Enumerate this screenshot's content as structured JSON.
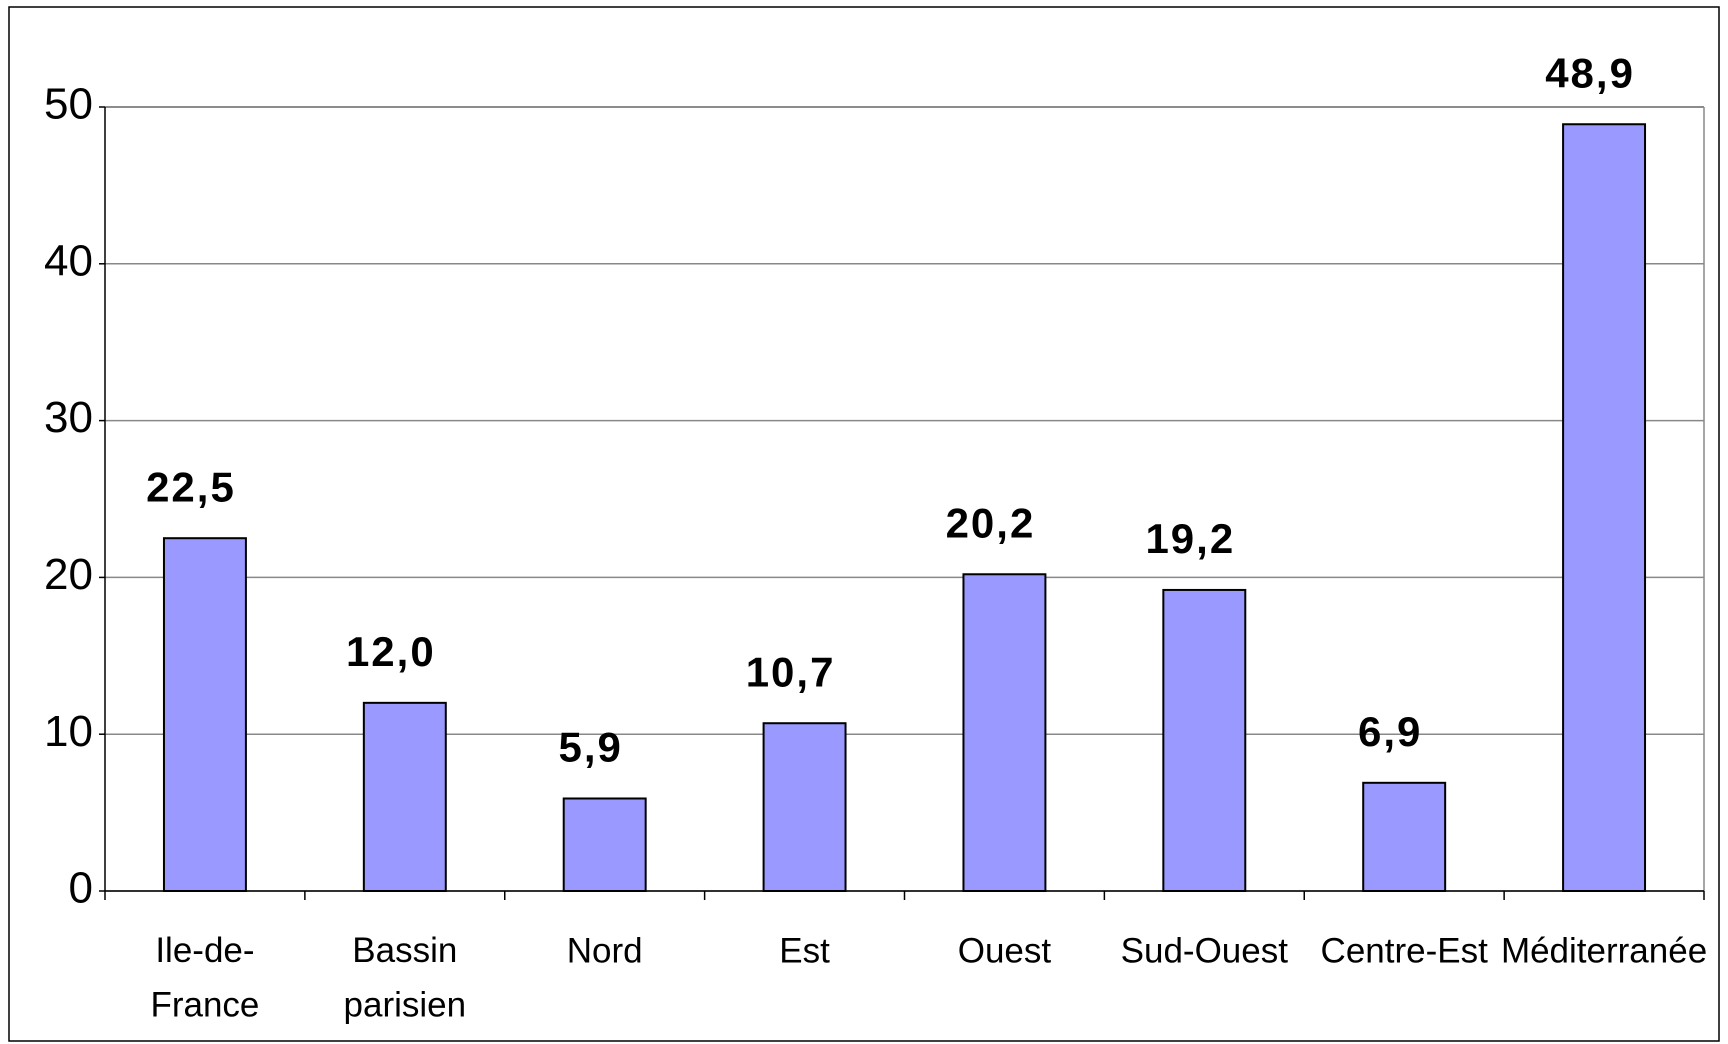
{
  "chart_data": {
    "type": "bar",
    "categories": [
      "Ile-de-\nFrance",
      "Bassin\nparisien",
      "Nord",
      "Est",
      "Ouest",
      "Sud-Ouest",
      "Centre-Est",
      "Méditerranée"
    ],
    "values": [
      22.5,
      12.0,
      5.9,
      10.7,
      20.2,
      19.2,
      6.9,
      48.9
    ],
    "value_labels": [
      "22,5",
      "12,0",
      "5,9",
      "10,7",
      "20,2",
      "19,2",
      "6,9",
      "48,9"
    ],
    "color": "#9999ff",
    "ylim": [
      0,
      50
    ],
    "yticks": [
      0,
      10,
      20,
      30,
      40,
      50
    ],
    "grid": true
  }
}
